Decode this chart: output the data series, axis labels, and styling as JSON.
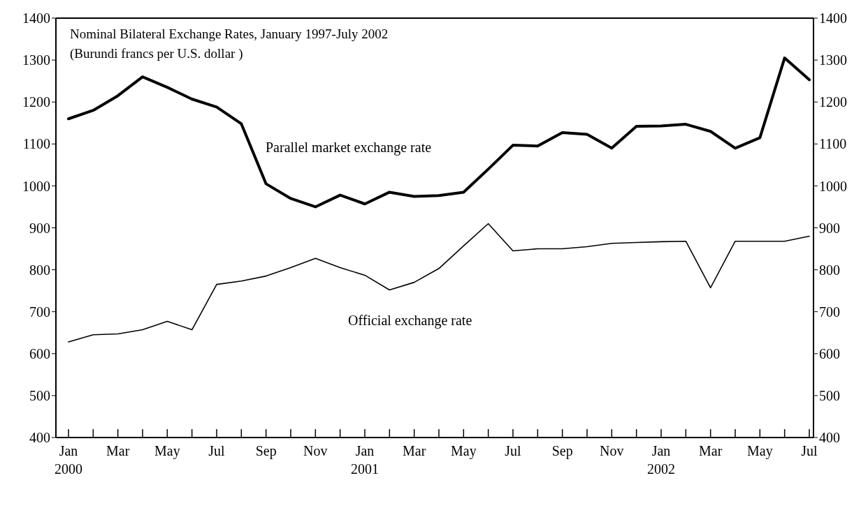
{
  "chart_data": {
    "type": "line",
    "title": "Nominal Bilateral Exchange Rates, January 1997-July 2002",
    "subtitle": "(Burundi francs per U.S. dollar )",
    "categories": [
      "Jan\n2000",
      null,
      "Mar",
      null,
      "May",
      null,
      "Jul",
      null,
      "Sep",
      null,
      "Nov",
      null,
      "Jan\n2001",
      null,
      "Mar",
      null,
      "May",
      null,
      "Jul",
      null,
      "Sep",
      null,
      "Nov",
      null,
      "Jan\n2002",
      null,
      "Mar",
      null,
      "May",
      null,
      "Jul"
    ],
    "series": [
      {
        "name": "Parallel market exchange rate",
        "color": "#000000",
        "values": [
          1160,
          1180,
          1215,
          1260,
          1235,
          1207,
          1188,
          1148,
          1005,
          970,
          950,
          978,
          957,
          985,
          975,
          977,
          985,
          1040,
          1097,
          1095,
          1127,
          1123,
          1090,
          1142,
          1143,
          1147,
          1130,
          1090,
          1115,
          1305,
          1253
        ]
      },
      {
        "name": "Official exchange rate",
        "color": "#000000",
        "values": [
          628,
          645,
          647,
          657,
          677,
          657,
          765,
          773,
          785,
          805,
          827,
          805,
          787,
          752,
          770,
          803,
          857,
          910,
          845,
          850,
          850,
          855,
          863,
          865,
          867,
          868,
          757,
          868,
          868,
          868,
          880
        ]
      }
    ],
    "ylim": [
      400,
      1400
    ],
    "yticks": [
      400,
      500,
      600,
      700,
      800,
      900,
      1000,
      1100,
      1200,
      1300,
      1400
    ],
    "y2lim": [
      400,
      1400
    ],
    "y2ticks": [
      400,
      500,
      600,
      700,
      800,
      900,
      1000,
      1100,
      1200,
      1300,
      1400
    ],
    "legend": false,
    "grid": false,
    "marker": "none",
    "line_style": "solid"
  }
}
